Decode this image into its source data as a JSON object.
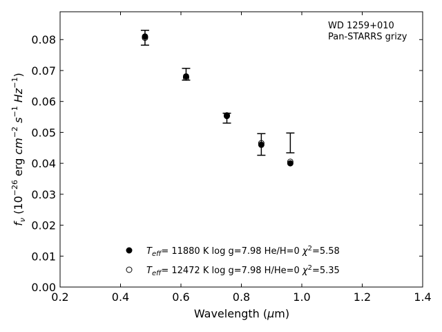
{
  "chart_data": {
    "type": "scatter",
    "annotation": [
      "WD 1259+010",
      "Pan-STARRS grizy"
    ],
    "xlabel": "Wavelength (μm)",
    "ylabel": "f_ν (10^-26 erg cm^-2 s^-1 Hz^-1)",
    "xlim": [
      0.2,
      1.4
    ],
    "ylim": [
      0.0,
      0.089
    ],
    "xticks": [
      0.2,
      0.4,
      0.6,
      0.8,
      1.0,
      1.2,
      1.4
    ],
    "xtick_labels": [
      "0.2",
      "0.4",
      "0.6",
      "0.8",
      "1.0",
      "1.2",
      "1.4"
    ],
    "yticks": [
      0.0,
      0.01,
      0.02,
      0.03,
      0.04,
      0.05,
      0.06,
      0.07,
      0.08
    ],
    "ytick_labels": [
      "0.00",
      "0.01",
      "0.02",
      "0.03",
      "0.04",
      "0.05",
      "0.06",
      "0.07",
      "0.08"
    ],
    "grid": false,
    "legend_position": "bottom-center",
    "observed": {
      "x": [
        0.481,
        0.617,
        0.752,
        0.866,
        0.962
      ],
      "y": [
        0.0806,
        0.0688,
        0.0546,
        0.0461,
        0.0466
      ],
      "yerr": [
        0.0024,
        0.0019,
        0.0016,
        0.0035,
        0.0032
      ]
    },
    "series": [
      {
        "name": "T_eff= 11880 K  log g=7.98  He/H=0  χ²=5.58",
        "marker": "filled-circle",
        "x": [
          0.481,
          0.617,
          0.752,
          0.866,
          0.962
        ],
        "y": [
          0.081,
          0.0681,
          0.0555,
          0.046,
          0.04
        ]
      },
      {
        "name": "T_eff= 12472 K  log g=7.98  H/He=0  χ²=5.35",
        "marker": "open-circle",
        "x": [
          0.481,
          0.617,
          0.752,
          0.866,
          0.962
        ],
        "y": [
          0.0806,
          0.0677,
          0.0553,
          0.0465,
          0.0405
        ]
      }
    ]
  }
}
